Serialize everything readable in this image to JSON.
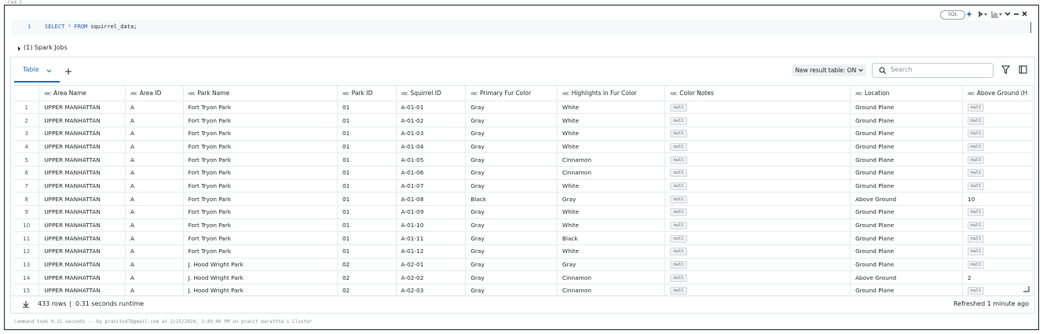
{
  "cell_label": "Cmd 2",
  "language_badge": "SQL",
  "code": {
    "line_number": "1",
    "tokens": [
      {
        "text": "SELECT",
        "color": "#2a5db0"
      },
      {
        "text": "*",
        "color": "#8a9299"
      },
      {
        "text": "FROM",
        "color": "#2a5db0"
      },
      {
        "text": "squirrel_data;",
        "color": "#1f272d"
      }
    ]
  },
  "spark_jobs": "(1) Spark Jobs",
  "tab": "Table",
  "result_toggle": "New result table: ON",
  "search_placeholder": "Search",
  "table": {
    "type_icon": "ABC",
    "null_label": "null",
    "columns": [
      "Area Name",
      "Area ID",
      "Park Name",
      "Park ID",
      "Squirrel ID",
      "Primary Fur Color",
      "Highlights in Fur Color",
      "Color Notes",
      "Location",
      "Above Ground (H"
    ],
    "rows": [
      [
        1,
        "UPPER MANHATTAN",
        "A",
        "Fort Tryon Park",
        "01",
        "A-01-01",
        "Gray",
        "White",
        null,
        "Ground Plane",
        null
      ],
      [
        2,
        "UPPER MANHATTAN",
        "A",
        "Fort Tryon Park",
        "01",
        "A-01-02",
        "Gray",
        "White",
        null,
        "Ground Plane",
        null
      ],
      [
        3,
        "UPPER MANHATTAN",
        "A",
        "Fort Tryon Park",
        "01",
        "A-01-03",
        "Gray",
        "White",
        null,
        "Ground Plane",
        null
      ],
      [
        4,
        "UPPER MANHATTAN",
        "A",
        "Fort Tryon Park",
        "01",
        "A-01-04",
        "Gray",
        "White",
        null,
        "Ground Plane",
        null
      ],
      [
        5,
        "UPPER MANHATTAN",
        "A",
        "Fort Tryon Park",
        "01",
        "A-01-05",
        "Gray",
        "Cinnamon",
        null,
        "Ground Plane",
        null
      ],
      [
        6,
        "UPPER MANHATTAN",
        "A",
        "Fort Tryon Park",
        "01",
        "A-01-06",
        "Gray",
        "Cinnamon",
        null,
        "Ground Plane",
        null
      ],
      [
        7,
        "UPPER MANHATTAN",
        "A",
        "Fort Tryon Park",
        "01",
        "A-01-07",
        "Gray",
        "White",
        null,
        "Ground Plane",
        null
      ],
      [
        8,
        "UPPER MANHATTAN",
        "A",
        "Fort Tryon Park",
        "01",
        "A-01-08",
        "Black",
        "Gray",
        null,
        "Above Ground",
        10
      ],
      [
        9,
        "UPPER MANHATTAN",
        "A",
        "Fort Tryon Park",
        "01",
        "A-01-09",
        "Gray",
        "White",
        null,
        "Ground Plane",
        null
      ],
      [
        10,
        "UPPER MANHATTAN",
        "A",
        "Fort Tryon Park",
        "01",
        "A-01-10",
        "Gray",
        "White",
        null,
        "Ground Plane",
        null
      ],
      [
        11,
        "UPPER MANHATTAN",
        "A",
        "Fort Tryon Park",
        "01",
        "A-01-11",
        "Gray",
        "Black",
        null,
        "Ground Plane",
        null
      ],
      [
        12,
        "UPPER MANHATTAN",
        "A",
        "Fort Tryon Park",
        "01",
        "A-01-12",
        "Gray",
        "White",
        null,
        "Ground Plane",
        null
      ],
      [
        13,
        "UPPER MANHATTAN",
        "A",
        "J. Hood Wright Park",
        "02",
        "A-02-01",
        "Gray",
        "Gray",
        null,
        "Ground Plane",
        null
      ],
      [
        14,
        "UPPER MANHATTAN",
        "A",
        "J. Hood Wright Park",
        "02",
        "A-02-02",
        "Gray",
        "Cinnamon",
        null,
        "Above Ground",
        2
      ],
      [
        15,
        "UPPER MANHATTAN",
        "A",
        "J. Hood Wright Park",
        "02",
        "A-02-03",
        "Gray",
        "Cinnamon",
        null,
        "Ground Plane",
        null
      ]
    ]
  },
  "footer": {
    "rows": "433 rows",
    "separator": "|",
    "runtime": "0.31 seconds runtime",
    "refreshed": "Refreshed 1 minute ago"
  },
  "command_info": "Command took 0.31 seconds -- by pranitx47@gmail.com at 2/15/2024, 2:49:06 PM on pranit marattha's Cluster"
}
